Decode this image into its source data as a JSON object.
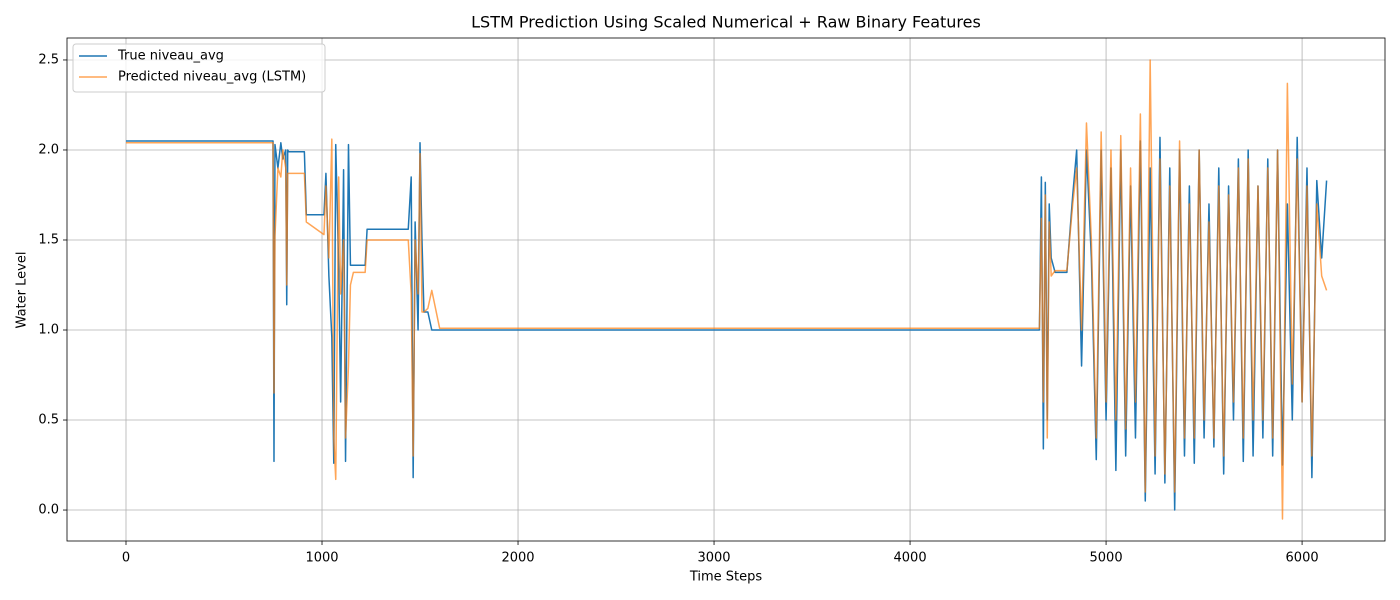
{
  "chart_data": {
    "type": "line",
    "title": "LSTM Prediction Using Scaled Numerical + Raw Binary Features",
    "x_label": "Time Steps",
    "y_label": "Water Level",
    "xlim": [
      -301,
      6423
    ],
    "ylim": [
      -0.172,
      2.622
    ],
    "xticks": [
      0,
      1000,
      2000,
      3000,
      4000,
      5000,
      6000
    ],
    "yticks": [
      {
        "value": 0,
        "label": "0.0"
      },
      0.5,
      {
        "value": 1,
        "label": "1.0"
      },
      1.5,
      {
        "value": 2,
        "label": "2.0"
      },
      2.5
    ],
    "grid": true,
    "legend": "upper left",
    "x": [
      0,
      750,
      755,
      760,
      775,
      790,
      800,
      815,
      820,
      825,
      830,
      910,
      920,
      1010,
      1020,
      1035,
      1050,
      1060,
      1070,
      1085,
      1095,
      1110,
      1120,
      1135,
      1145,
      1160,
      1220,
      1230,
      1440,
      1455,
      1465,
      1475,
      1490,
      1500,
      1510,
      1520,
      1540,
      1560,
      1600,
      4660,
      4670,
      4680,
      4690,
      4700,
      4710,
      4720,
      4740,
      4800,
      4830,
      4850,
      4875,
      4900,
      4925,
      4950,
      4975,
      5000,
      5025,
      5050,
      5075,
      5100,
      5125,
      5150,
      5175,
      5200,
      5225,
      5250,
      5275,
      5300,
      5325,
      5350,
      5375,
      5400,
      5425,
      5450,
      5475,
      5500,
      5525,
      5550,
      5575,
      5600,
      5625,
      5650,
      5675,
      5700,
      5725,
      5750,
      5775,
      5800,
      5825,
      5850,
      5875,
      5900,
      5925,
      5950,
      5975,
      6000,
      6025,
      6050,
      6075,
      6100,
      6125
    ],
    "series": [
      {
        "name": "True niveau_avg",
        "color": "#1f77b4",
        "alpha": 1,
        "values": [
          2.05,
          2.05,
          0.27,
          2.03,
          1.9,
          2.04,
          1.95,
          2.0,
          1.14,
          2.0,
          1.99,
          1.99,
          1.64,
          1.64,
          1.87,
          1.3,
          0.96,
          0.26,
          2.03,
          1.35,
          0.6,
          1.89,
          0.27,
          2.03,
          1.36,
          1.36,
          1.36,
          1.56,
          1.56,
          1.85,
          0.18,
          1.6,
          1.0,
          2.04,
          1.5,
          1.1,
          1.1,
          1.0,
          1.0,
          1.0,
          1.85,
          0.34,
          1.82,
          0.5,
          1.7,
          1.4,
          1.32,
          1.32,
          1.75,
          2.0,
          0.8,
          2.0,
          1.4,
          0.28,
          2.0,
          0.5,
          1.9,
          0.22,
          2.0,
          0.3,
          1.8,
          0.4,
          2.05,
          0.05,
          1.9,
          0.2,
          2.07,
          0.15,
          1.9,
          0.0,
          2.0,
          0.3,
          1.8,
          0.26,
          2.0,
          0.4,
          1.7,
          0.35,
          1.9,
          0.2,
          1.8,
          0.5,
          1.95,
          0.27,
          2.0,
          0.3,
          1.8,
          0.4,
          1.95,
          0.3,
          2.0,
          0.25,
          1.7,
          0.5,
          2.07,
          0.6,
          1.9,
          0.18,
          1.83,
          1.4,
          1.83
        ]
      },
      {
        "name": "Predicted niveau_avg (LSTM)",
        "color": "#ff7f0e",
        "alpha": 0.7,
        "values": [
          2.04,
          2.04,
          0.65,
          1.52,
          1.9,
          1.85,
          2.0,
          1.9,
          1.25,
          1.87,
          1.87,
          1.87,
          1.6,
          1.53,
          1.8,
          1.4,
          2.06,
          0.4,
          0.17,
          1.85,
          1.2,
          1.5,
          0.4,
          0.8,
          1.25,
          1.32,
          1.32,
          1.5,
          1.5,
          1.2,
          0.3,
          1.5,
          1.2,
          1.98,
          1.1,
          1.1,
          1.12,
          1.22,
          1.01,
          1.01,
          1.62,
          0.6,
          1.75,
          0.4,
          1.6,
          1.3,
          1.33,
          1.33,
          1.7,
          1.9,
          1.0,
          2.15,
          1.5,
          0.4,
          2.1,
          0.6,
          2.0,
          0.5,
          2.08,
          0.45,
          1.9,
          0.6,
          2.2,
          0.1,
          2.5,
          0.3,
          1.95,
          0.2,
          1.8,
          0.1,
          2.05,
          0.4,
          1.7,
          0.4,
          2.0,
          0.5,
          1.6,
          0.4,
          1.8,
          0.3,
          1.75,
          0.6,
          1.9,
          0.4,
          1.95,
          0.5,
          1.8,
          0.5,
          1.9,
          0.4,
          2.0,
          -0.05,
          2.37,
          0.7,
          1.95,
          0.6,
          1.8,
          0.3,
          1.7,
          1.3,
          1.22
        ]
      }
    ]
  }
}
